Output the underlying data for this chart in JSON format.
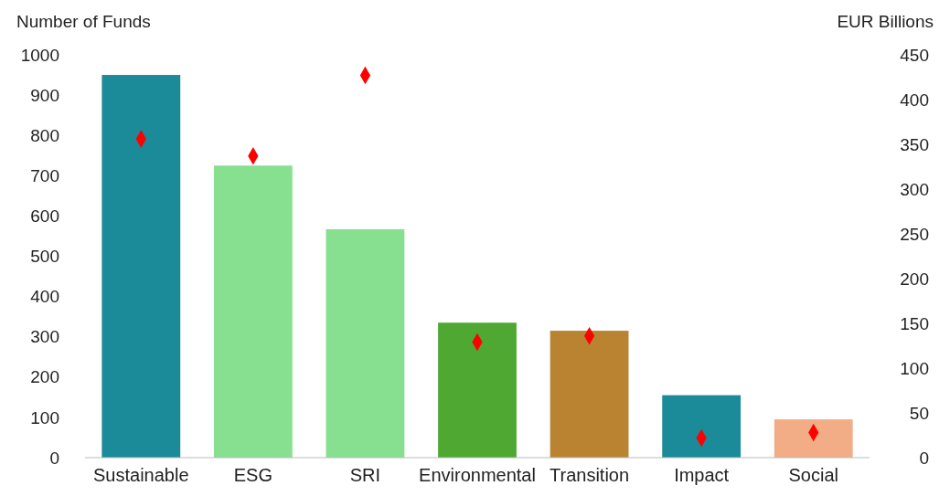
{
  "chart_data": {
    "type": "bar",
    "ylabel": "Number of Funds",
    "y2label": "EUR Billions",
    "categories": [
      "Sustainable",
      "ESG",
      "SRI",
      "Environmental",
      "Transition",
      "Impact",
      "Social"
    ],
    "series": [
      {
        "type": "bar",
        "colors": [
          "#1b8a99",
          "#86e08f",
          "#86e08f",
          "#4ea832",
          "#b98331",
          "#1b8a99",
          "#f2ad87"
        ],
        "values": [
          950,
          725,
          567,
          335,
          315,
          155,
          95
        ]
      },
      {
        "type": "scatter",
        "axis": "y2",
        "color": "#ff0000",
        "marker": "diamond",
        "values": [
          356,
          337,
          427,
          129,
          136,
          22,
          28
        ]
      }
    ],
    "ylim": [
      0,
      1000
    ],
    "yticks": [
      0,
      100,
      200,
      300,
      400,
      500,
      600,
      700,
      800,
      900,
      1000
    ],
    "y2lim": [
      0,
      450
    ],
    "y2ticks": [
      0,
      50,
      100,
      150,
      200,
      250,
      300,
      350,
      400,
      450
    ],
    "grid": false
  }
}
